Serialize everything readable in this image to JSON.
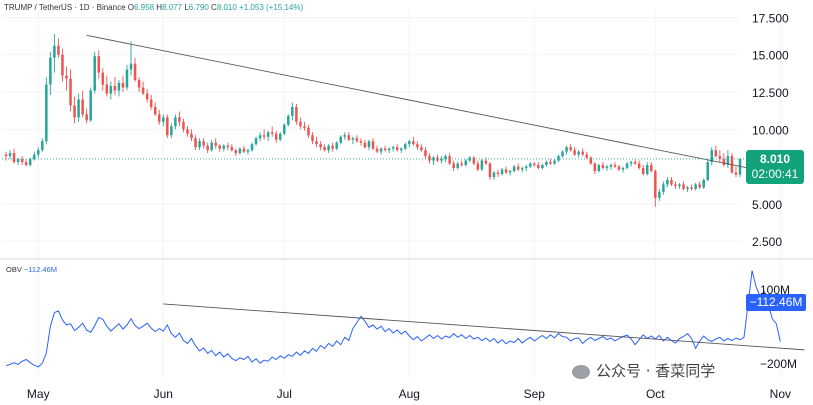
{
  "header": {
    "symbol": "TRUMP / TetherUS · 1D · Binance",
    "open_label": "O",
    "open": "6.958",
    "high_label": "H",
    "high": "8.077",
    "low_label": "L",
    "low": "6.790",
    "close_label": "C",
    "close": "8.010",
    "change": "+1.053 (+15.14%)"
  },
  "price_badge": {
    "price": "8.010",
    "countdown": "02:00:41"
  },
  "obv_label": {
    "name": "OBV",
    "value": "−112.46M"
  },
  "obv_badge": "−112.46M",
  "watermark": "公众号 · 香菜同学",
  "colors": {
    "up": "#26a69a",
    "down": "#ef5350",
    "obv": "#2962ff",
    "trend": "#555555",
    "badge": "#12a37c",
    "obv_badge": "#2962ff"
  },
  "chart_data": [
    {
      "type": "candlestick",
      "y_ticks": [
        "17.500",
        "15.000",
        "12.500",
        "10.000",
        "5.000",
        "2.500"
      ],
      "y_tick_values": [
        17.5,
        15.0,
        12.5,
        10.0,
        5.0,
        2.5
      ],
      "ylim": [
        1.5,
        18.0
      ],
      "x_ticks": [
        "May",
        "Jun",
        "Jul",
        "Aug",
        "Sep",
        "Oct",
        "Nov"
      ],
      "x_tick_index": [
        8,
        39,
        69,
        100,
        131,
        161,
        192
      ],
      "current_price": 8.01,
      "trendline": {
        "from": [
          20,
          16.3
        ],
        "to": [
          197,
          6.7
        ]
      },
      "series": [
        [
          8.3,
          8.5,
          7.9,
          8.2
        ],
        [
          8.2,
          8.6,
          8.0,
          8.4
        ],
        [
          8.4,
          8.7,
          7.7,
          7.8
        ],
        [
          7.8,
          8.1,
          7.6,
          8.0
        ],
        [
          8.0,
          8.2,
          7.6,
          7.8
        ],
        [
          7.8,
          8.0,
          7.5,
          7.6
        ],
        [
          7.6,
          8.1,
          7.5,
          8.0
        ],
        [
          8.0,
          8.5,
          7.9,
          8.3
        ],
        [
          8.3,
          8.8,
          8.1,
          8.6
        ],
        [
          8.6,
          9.4,
          8.5,
          9.2
        ],
        [
          9.2,
          13.5,
          9.0,
          13.0
        ],
        [
          13.0,
          15.2,
          12.3,
          14.8
        ],
        [
          14.8,
          16.4,
          13.8,
          15.6
        ],
        [
          15.6,
          16.1,
          14.8,
          15.0
        ],
        [
          15.0,
          15.4,
          13.2,
          13.6
        ],
        [
          13.6,
          14.2,
          12.6,
          13.4
        ],
        [
          13.4,
          14.0,
          11.2,
          11.6
        ],
        [
          11.6,
          12.2,
          10.4,
          10.8
        ],
        [
          10.8,
          12.4,
          10.5,
          12.0
        ],
        [
          12.0,
          12.6,
          10.8,
          11.0
        ],
        [
          11.0,
          11.4,
          10.4,
          10.6
        ],
        [
          10.6,
          12.8,
          10.5,
          12.6
        ],
        [
          12.6,
          15.2,
          12.4,
          14.9
        ],
        [
          14.9,
          15.3,
          13.4,
          13.8
        ],
        [
          13.8,
          14.1,
          12.6,
          13.0
        ],
        [
          13.0,
          13.6,
          12.2,
          12.4
        ],
        [
          12.4,
          13.2,
          12.0,
          12.9
        ],
        [
          12.9,
          13.5,
          12.3,
          12.6
        ],
        [
          12.6,
          13.3,
          12.2,
          13.1
        ],
        [
          13.1,
          13.6,
          12.5,
          12.8
        ],
        [
          12.8,
          14.3,
          12.6,
          14.0
        ],
        [
          14.0,
          15.9,
          13.6,
          14.4
        ],
        [
          14.4,
          14.8,
          13.2,
          13.3
        ],
        [
          13.3,
          13.5,
          12.5,
          12.8
        ],
        [
          12.8,
          13.2,
          12.3,
          12.4
        ],
        [
          12.4,
          12.7,
          11.8,
          12.0
        ],
        [
          12.0,
          12.3,
          11.3,
          11.5
        ],
        [
          11.5,
          11.8,
          10.9,
          11.0
        ],
        [
          11.0,
          11.3,
          10.3,
          10.5
        ],
        [
          10.5,
          11.0,
          10.2,
          10.8
        ],
        [
          10.8,
          11.0,
          9.4,
          9.6
        ],
        [
          9.6,
          10.4,
          9.4,
          10.2
        ],
        [
          10.2,
          11.0,
          10.0,
          10.8
        ],
        [
          10.8,
          11.2,
          10.2,
          10.5
        ],
        [
          10.5,
          10.7,
          9.8,
          10.0
        ],
        [
          10.0,
          10.2,
          9.5,
          9.7
        ],
        [
          9.7,
          10.0,
          9.2,
          9.4
        ],
        [
          9.4,
          9.6,
          8.6,
          8.8
        ],
        [
          8.8,
          9.4,
          8.6,
          9.2
        ],
        [
          9.2,
          9.4,
          8.7,
          8.9
        ],
        [
          8.9,
          9.1,
          8.4,
          8.6
        ],
        [
          8.6,
          9.3,
          8.5,
          9.1
        ],
        [
          9.1,
          9.4,
          8.7,
          8.9
        ],
        [
          8.9,
          9.0,
          8.5,
          8.7
        ],
        [
          8.7,
          9.0,
          8.5,
          8.9
        ],
        [
          8.9,
          9.1,
          8.6,
          8.8
        ],
        [
          8.8,
          9.0,
          8.5,
          8.6
        ],
        [
          8.6,
          8.7,
          8.2,
          8.4
        ],
        [
          8.4,
          8.8,
          8.3,
          8.7
        ],
        [
          8.7,
          8.9,
          8.4,
          8.5
        ],
        [
          8.5,
          8.7,
          8.3,
          8.6
        ],
        [
          8.6,
          9.1,
          8.5,
          9.0
        ],
        [
          9.0,
          9.5,
          8.9,
          9.4
        ],
        [
          9.4,
          9.8,
          9.2,
          9.6
        ],
        [
          9.6,
          10.0,
          9.3,
          9.5
        ],
        [
          9.5,
          9.9,
          9.2,
          9.8
        ],
        [
          9.8,
          10.2,
          9.5,
          9.7
        ],
        [
          9.7,
          9.9,
          9.1,
          9.3
        ],
        [
          9.3,
          9.8,
          9.2,
          9.7
        ],
        [
          9.7,
          10.4,
          9.6,
          10.3
        ],
        [
          10.3,
          11.0,
          10.2,
          10.9
        ],
        [
          10.9,
          11.8,
          10.6,
          11.5
        ],
        [
          11.5,
          11.7,
          10.3,
          10.5
        ],
        [
          10.5,
          10.8,
          10.0,
          10.2
        ],
        [
          10.2,
          10.5,
          9.9,
          10.1
        ],
        [
          10.1,
          10.3,
          9.4,
          9.6
        ],
        [
          9.6,
          9.8,
          9.0,
          9.2
        ],
        [
          9.2,
          9.5,
          8.8,
          9.0
        ],
        [
          9.0,
          9.2,
          8.6,
          8.8
        ],
        [
          8.8,
          9.0,
          8.5,
          8.6
        ],
        [
          8.6,
          9.0,
          8.4,
          8.9
        ],
        [
          8.9,
          9.1,
          8.5,
          8.7
        ],
        [
          8.7,
          9.2,
          8.6,
          9.1
        ],
        [
          9.1,
          9.6,
          9.0,
          9.5
        ],
        [
          9.5,
          9.8,
          9.3,
          9.6
        ],
        [
          9.6,
          9.8,
          9.2,
          9.3
        ],
        [
          9.3,
          9.5,
          9.0,
          9.4
        ],
        [
          9.4,
          9.6,
          9.1,
          9.2
        ],
        [
          9.2,
          9.4,
          8.9,
          9.1
        ],
        [
          9.1,
          9.3,
          8.7,
          8.8
        ],
        [
          8.8,
          9.3,
          8.6,
          9.2
        ],
        [
          9.2,
          9.4,
          8.6,
          8.7
        ],
        [
          8.7,
          8.9,
          8.4,
          8.5
        ],
        [
          8.5,
          8.8,
          8.3,
          8.7
        ],
        [
          8.7,
          8.9,
          8.5,
          8.6
        ],
        [
          8.6,
          8.8,
          8.4,
          8.7
        ],
        [
          8.7,
          8.9,
          8.5,
          8.8
        ],
        [
          8.8,
          9.0,
          8.5,
          8.6
        ],
        [
          8.6,
          8.8,
          8.4,
          8.7
        ],
        [
          8.7,
          9.1,
          8.6,
          9.0
        ],
        [
          9.0,
          9.3,
          8.8,
          9.2
        ],
        [
          9.2,
          9.5,
          8.9,
          9.0
        ],
        [
          9.0,
          9.2,
          8.6,
          8.8
        ],
        [
          8.8,
          9.0,
          8.5,
          8.6
        ],
        [
          8.6,
          8.8,
          8.0,
          8.2
        ],
        [
          8.2,
          8.4,
          7.7,
          7.9
        ],
        [
          7.9,
          8.2,
          7.6,
          8.1
        ],
        [
          8.1,
          8.3,
          7.8,
          7.9
        ],
        [
          7.9,
          8.2,
          7.7,
          8.0
        ],
        [
          8.0,
          8.3,
          7.8,
          8.2
        ],
        [
          8.2,
          8.4,
          7.6,
          7.7
        ],
        [
          7.7,
          7.9,
          7.2,
          7.4
        ],
        [
          7.4,
          7.8,
          7.3,
          7.7
        ],
        [
          7.7,
          7.9,
          7.5,
          7.6
        ],
        [
          7.6,
          8.0,
          7.5,
          7.9
        ],
        [
          7.9,
          8.2,
          7.8,
          8.1
        ],
        [
          8.1,
          8.2,
          7.6,
          7.7
        ],
        [
          7.7,
          7.9,
          7.2,
          7.3
        ],
        [
          7.3,
          8.0,
          7.2,
          7.9
        ],
        [
          7.9,
          8.1,
          7.6,
          7.7
        ],
        [
          7.7,
          7.8,
          6.6,
          6.8
        ],
        [
          6.8,
          7.2,
          6.6,
          7.1
        ],
        [
          7.1,
          7.3,
          6.8,
          7.0
        ],
        [
          7.0,
          7.4,
          6.9,
          7.3
        ],
        [
          7.3,
          7.5,
          7.0,
          7.1
        ],
        [
          7.1,
          7.3,
          6.9,
          7.2
        ],
        [
          7.2,
          7.6,
          7.1,
          7.5
        ],
        [
          7.5,
          7.7,
          7.2,
          7.3
        ],
        [
          7.3,
          7.5,
          7.1,
          7.4
        ],
        [
          7.4,
          7.6,
          7.2,
          7.5
        ],
        [
          7.5,
          7.8,
          7.4,
          7.7
        ],
        [
          7.7,
          7.8,
          7.5,
          7.6
        ],
        [
          7.6,
          7.8,
          7.3,
          7.4
        ],
        [
          7.4,
          7.7,
          7.3,
          7.6
        ],
        [
          7.6,
          7.9,
          7.5,
          7.8
        ],
        [
          7.8,
          8.0,
          7.6,
          7.7
        ],
        [
          7.7,
          8.0,
          7.6,
          7.9
        ],
        [
          7.9,
          8.3,
          7.8,
          8.2
        ],
        [
          8.2,
          8.6,
          8.1,
          8.5
        ],
        [
          8.5,
          8.9,
          8.3,
          8.8
        ],
        [
          8.8,
          9.0,
          8.5,
          8.6
        ],
        [
          8.6,
          8.8,
          8.2,
          8.3
        ],
        [
          8.3,
          8.6,
          8.1,
          8.5
        ],
        [
          8.5,
          8.7,
          8.2,
          8.3
        ],
        [
          8.3,
          8.5,
          8.0,
          8.1
        ],
        [
          8.1,
          8.2,
          7.6,
          7.7
        ],
        [
          7.7,
          7.8,
          7.0,
          7.2
        ],
        [
          7.2,
          7.7,
          7.1,
          7.6
        ],
        [
          7.6,
          7.8,
          7.3,
          7.4
        ],
        [
          7.4,
          7.6,
          7.2,
          7.5
        ],
        [
          7.5,
          7.7,
          7.3,
          7.6
        ],
        [
          7.6,
          7.8,
          7.4,
          7.5
        ],
        [
          7.5,
          7.6,
          7.2,
          7.3
        ],
        [
          7.3,
          7.5,
          7.1,
          7.4
        ],
        [
          7.4,
          7.8,
          7.3,
          7.7
        ],
        [
          7.7,
          7.9,
          7.5,
          7.8
        ],
        [
          7.8,
          8.0,
          7.6,
          7.7
        ],
        [
          7.7,
          7.9,
          7.3,
          7.4
        ],
        [
          7.4,
          7.6,
          6.9,
          7.0
        ],
        [
          7.0,
          7.8,
          6.9,
          7.6
        ],
        [
          7.6,
          7.8,
          7.1,
          7.2
        ],
        [
          7.2,
          7.3,
          4.8,
          5.4
        ],
        [
          5.4,
          6.0,
          5.2,
          5.8
        ],
        [
          5.8,
          6.5,
          5.6,
          6.3
        ],
        [
          6.3,
          6.8,
          6.1,
          6.6
        ],
        [
          6.6,
          6.8,
          6.2,
          6.3
        ],
        [
          6.3,
          6.5,
          6.0,
          6.2
        ],
        [
          6.2,
          6.4,
          6.0,
          6.3
        ],
        [
          6.3,
          6.5,
          5.9,
          6.0
        ],
        [
          6.0,
          6.2,
          5.8,
          6.1
        ],
        [
          6.1,
          6.3,
          5.9,
          6.0
        ],
        [
          6.0,
          6.4,
          5.9,
          6.3
        ],
        [
          6.3,
          6.5,
          6.0,
          6.1
        ],
        [
          6.1,
          6.7,
          6.0,
          6.6
        ],
        [
          6.6,
          8.0,
          6.5,
          7.8
        ],
        [
          7.8,
          8.8,
          7.6,
          8.6
        ],
        [
          8.6,
          8.9,
          8.1,
          8.2
        ],
        [
          8.2,
          8.6,
          7.8,
          8.0
        ],
        [
          8.0,
          8.4,
          7.5,
          7.6
        ],
        [
          7.6,
          8.6,
          7.4,
          8.2
        ],
        [
          8.2,
          8.4,
          7.0,
          7.1
        ],
        [
          7.1,
          7.5,
          6.8,
          6.96
        ],
        [
          6.958,
          8.077,
          6.79,
          8.01
        ]
      ]
    },
    {
      "type": "line",
      "name": "OBV",
      "y_ticks": [
        "100M",
        "−200M"
      ],
      "y_tick_values": [
        100,
        -200
      ],
      "ylim": [
        -260,
        210
      ],
      "current_value": -112.46,
      "trendline": {
        "from": [
          39,
          40
        ],
        "to": [
          198,
          -146
        ]
      },
      "values": [
        -210,
        -205,
        -198,
        -205,
        -192,
        -185,
        -198,
        -208,
        -215,
        -200,
        -160,
        -50,
        5,
        12,
        -25,
        -45,
        -40,
        -68,
        -55,
        -38,
        -66,
        -75,
        -48,
        -15,
        -22,
        -50,
        -70,
        -55,
        -40,
        -62,
        -45,
        -20,
        -48,
        -60,
        -50,
        -38,
        -58,
        -72,
        -60,
        -70,
        -45,
        -80,
        -95,
        -78,
        -108,
        -120,
        -100,
        -130,
        -150,
        -138,
        -160,
        -148,
        -170,
        -155,
        -175,
        -162,
        -180,
        -190,
        -178,
        -185,
        -172,
        -195,
        -182,
        -200,
        -188,
        -192,
        -175,
        -185,
        -170,
        -180,
        -165,
        -172,
        -155,
        -168,
        -150,
        -160,
        -140,
        -152,
        -128,
        -140,
        -120,
        -132,
        -110,
        -125,
        -95,
        -108,
        -60,
        -35,
        -10,
        -30,
        -55,
        -45,
        -62,
        -50,
        -72,
        -60,
        -78,
        -65,
        -82,
        -70,
        -90,
        -105,
        -92,
        -110,
        -98,
        -85,
        -100,
        -88,
        -102,
        -90,
        -96,
        -80,
        -95,
        -85,
        -100,
        -88,
        -102,
        -95,
        -108,
        -98,
        -112,
        -100,
        -118,
        -105,
        -122,
        -110,
        -116,
        -100,
        -118,
        -105,
        -95,
        -110,
        -98,
        -88,
        -100,
        -85,
        -98,
        -80,
        -92,
        -95,
        -110,
        -100,
        -98,
        -120,
        -105,
        -95,
        -108,
        -100,
        -92,
        -105,
        -98,
        -110,
        -100,
        -92,
        -86,
        -102,
        -125,
        -105,
        -85,
        -100,
        -90,
        -102,
        -88,
        -110,
        -95,
        -108,
        -118,
        -100,
        -92,
        -80,
        -100,
        -140,
        -110,
        -90,
        -105,
        -112,
        -102,
        -95,
        -110,
        -100,
        -108,
        -98,
        -105,
        -95,
        40,
        175,
        110,
        70,
        90,
        40,
        -20,
        -40,
        -112.46
      ]
    }
  ]
}
